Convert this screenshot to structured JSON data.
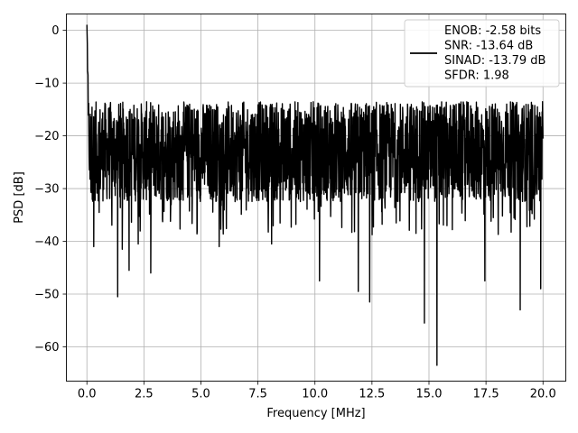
{
  "chart_data": {
    "type": "line",
    "xlabel": "Frequency [MHz]",
    "ylabel": "PSD [dB]",
    "xlim": [
      -0.9,
      21.0
    ],
    "ylim": [
      -66.5,
      3.1
    ],
    "x_ticks": [
      0.0,
      2.5,
      5.0,
      7.5,
      10.0,
      12.5,
      15.0,
      17.5,
      20.0
    ],
    "x_tick_labels": [
      "0.0",
      "2.5",
      "5.0",
      "7.5",
      "10.0",
      "12.5",
      "15.0",
      "17.5",
      "20.0"
    ],
    "y_ticks": [
      0,
      -10,
      -20,
      -30,
      -40,
      -50,
      -60
    ],
    "y_tick_labels": [
      "0",
      "−10",
      "−20",
      "−30",
      "−40",
      "−50",
      "−60"
    ],
    "grid": true,
    "legend_position": "top-right",
    "legend": [
      "ENOB: -2.58 bits",
      "SNR: -13.64 dB",
      "SINAD: -13.79 dB",
      "SFDR: 1.98"
    ],
    "series": [
      {
        "color": "#000000",
        "x_range": [
          0.0,
          20.0
        ],
        "peak": {
          "x": 0.0,
          "y": 0.0
        },
        "noise_floor_band": [
          -33,
          -13
        ],
        "notable_dips": [
          {
            "x": 0.3,
            "y": -41
          },
          {
            "x": 1.35,
            "y": -50.5
          },
          {
            "x": 1.55,
            "y": -41.5
          },
          {
            "x": 1.85,
            "y": -45.5
          },
          {
            "x": 2.25,
            "y": -40.5
          },
          {
            "x": 2.8,
            "y": -46
          },
          {
            "x": 5.8,
            "y": -41
          },
          {
            "x": 8.1,
            "y": -40.5
          },
          {
            "x": 10.2,
            "y": -47.5
          },
          {
            "x": 11.9,
            "y": -49.5
          },
          {
            "x": 12.4,
            "y": -51.5
          },
          {
            "x": 14.8,
            "y": -55.5
          },
          {
            "x": 15.35,
            "y": -63.5
          },
          {
            "x": 17.45,
            "y": -47.5
          },
          {
            "x": 19.0,
            "y": -53
          },
          {
            "x": 19.9,
            "y": -49
          }
        ]
      }
    ]
  }
}
